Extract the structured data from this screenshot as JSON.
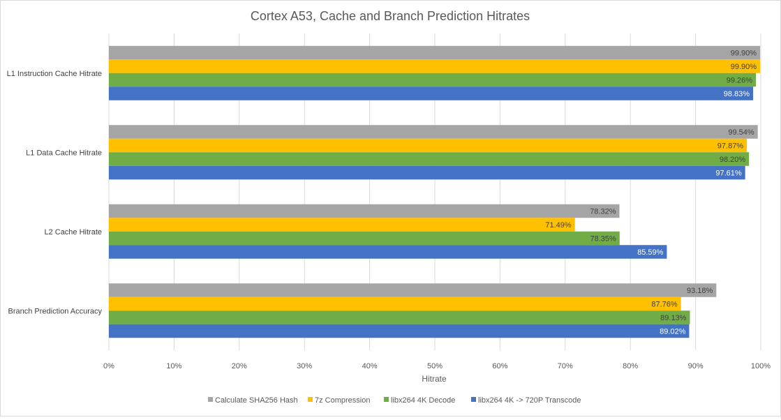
{
  "chart_data": {
    "type": "bar",
    "orientation": "horizontal",
    "title": "Cortex A53, Cache and Branch Prediction Hitrates",
    "xlabel": "Hitrate",
    "ylabel": "",
    "xlim": [
      0,
      100
    ],
    "x_ticks": [
      "0%",
      "10%",
      "20%",
      "30%",
      "40%",
      "50%",
      "60%",
      "70%",
      "80%",
      "90%",
      "100%"
    ],
    "grid": "vertical",
    "legend_position": "bottom",
    "categories": [
      "L1 Instruction Cache Hitrate",
      "L1 Data Cache Hitrate",
      "L2 Cache Hitrate",
      "Branch Prediction Accuracy"
    ],
    "series": [
      {
        "name": "Calculate SHA256 Hash",
        "color": "#a5a5a5",
        "values": [
          99.9,
          99.54,
          78.32,
          93.18
        ],
        "labels": [
          "99.90%",
          "99.54%",
          "78.32%",
          "93.18%"
        ]
      },
      {
        "name": "7z Compression",
        "color": "#ffc000",
        "values": [
          99.9,
          97.87,
          71.49,
          87.76
        ],
        "labels": [
          "99.90%",
          "97.87%",
          "71.49%",
          "87.76%"
        ]
      },
      {
        "name": "libx264 4K Decode",
        "color": "#70ad47",
        "values": [
          99.26,
          98.2,
          78.35,
          89.13
        ],
        "labels": [
          "99.26%",
          "98.20%",
          "78.35%",
          "89.13%"
        ]
      },
      {
        "name": "libx264 4K -> 720P Transcode",
        "color": "#4472c4",
        "values": [
          98.83,
          97.61,
          85.59,
          89.02
        ],
        "labels": [
          "98.83%",
          "97.61%",
          "85.59%",
          "89.02%"
        ]
      }
    ]
  }
}
